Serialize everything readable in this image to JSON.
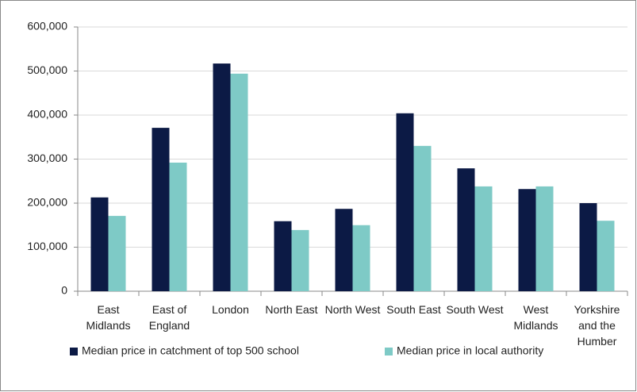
{
  "chart_data": {
    "type": "bar",
    "categories": [
      "East Midlands",
      "East of England",
      "London",
      "North East",
      "North West",
      "South East",
      "South West",
      "West Midlands",
      "Yorkshire and the Humber"
    ],
    "series": [
      {
        "name": "Median price in catchment of top 500 school",
        "color": "#0c1a45",
        "values": [
          213000,
          371000,
          517000,
          159000,
          187000,
          404000,
          279000,
          232000,
          200000
        ]
      },
      {
        "name": "Median price in local authority",
        "color": "#7ecac6",
        "values": [
          171000,
          292000,
          494000,
          139000,
          150000,
          330000,
          238000,
          238000,
          160000
        ]
      }
    ],
    "ylim": [
      0,
      600000
    ],
    "yticks": [
      0,
      {
        "value": 100000,
        "label": "100,000"
      },
      {
        "value": 200000,
        "label": "200,000"
      },
      {
        "value": 300000,
        "label": "300,000"
      },
      {
        "value": 400000,
        "label": "400,000"
      },
      {
        "value": 500000,
        "label": "500,000"
      },
      {
        "value": 600000,
        "label": "600,000"
      }
    ],
    "grid": true,
    "legend": "bottom"
  }
}
